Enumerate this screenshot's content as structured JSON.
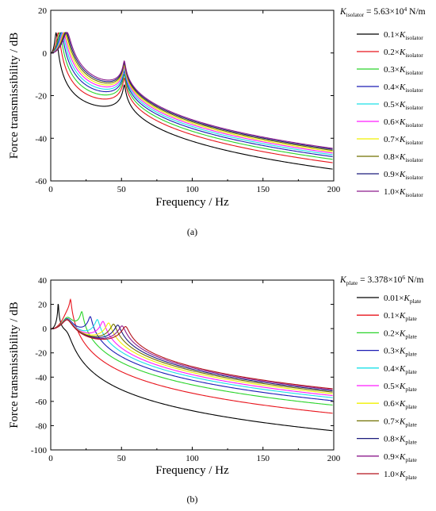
{
  "chart_data": [
    {
      "type": "line",
      "panel_label": "(a)",
      "xlabel": "Frequency / Hz",
      "ylabel": "Force transmissibility / dB",
      "xlim": [
        0,
        200
      ],
      "ylim": [
        -60,
        20
      ],
      "xticks": [
        0,
        50,
        100,
        150,
        200
      ],
      "yticks": [
        -60,
        -40,
        -20,
        0,
        20
      ],
      "grid": false,
      "legend_position": "right",
      "header": {
        "italic": "K",
        "sub": "isolator",
        "tail": " = 5.63×10",
        "sup": "4",
        "unit": " N/m"
      },
      "series": [
        {
          "name": "0.1×K isolator",
          "coef": "0.1×",
          "sym": "K",
          "sub": "isolator",
          "color": "#000000",
          "fi": 3.9
        },
        {
          "name": "0.2×K isolator",
          "coef": "0.2×",
          "sym": "K",
          "sub": "isolator",
          "color": "#e8141c",
          "fi": 5.5
        },
        {
          "name": "0.3×K isolator",
          "coef": "0.3×",
          "sym": "K",
          "sub": "isolator",
          "color": "#2ad42a",
          "fi": 6.6
        },
        {
          "name": "0.4×K isolator",
          "coef": "0.4×",
          "sym": "K",
          "sub": "isolator",
          "color": "#1c1cb4",
          "fi": 7.6
        },
        {
          "name": "0.5×K isolator",
          "coef": "0.5×",
          "sym": "K",
          "sub": "isolator",
          "color": "#1ce0e8",
          "fi": 8.4
        },
        {
          "name": "0.6×K isolator",
          "coef": "0.6×",
          "sym": "K",
          "sub": "isolator",
          "color": "#ff1cff",
          "fi": 9.2
        },
        {
          "name": "0.7×K isolator",
          "coef": "0.7×",
          "sym": "K",
          "sub": "isolator",
          "color": "#f0f000",
          "fi": 9.9
        },
        {
          "name": "0.8×K isolator",
          "coef": "0.8×",
          "sym": "K",
          "sub": "isolator",
          "color": "#707000",
          "fi": 10.6
        },
        {
          "name": "0.9×K isolator",
          "coef": "0.9×",
          "sym": "K",
          "sub": "isolator",
          "color": "#1c1c7c",
          "fi": 11.2
        },
        {
          "name": "1.0×K isolator",
          "coef": "1.0×",
          "sym": "K",
          "sub": "isolator",
          "color": "#8c1c8c",
          "fi": 11.8
        }
      ]
    },
    {
      "type": "line",
      "panel_label": "(b)",
      "xlabel": "Frequency / Hz",
      "ylabel": "Force transmissibility / dB",
      "xlim": [
        0,
        200
      ],
      "ylim": [
        -100,
        40
      ],
      "xticks": [
        0,
        50,
        100,
        150,
        200
      ],
      "yticks": [
        -100,
        -80,
        -60,
        -40,
        -20,
        0,
        20,
        40
      ],
      "grid": false,
      "legend_position": "right",
      "header": {
        "italic": "K",
        "sub": "plate",
        "tail": " = 3.378×10",
        "sup": "6",
        "unit": " N/m"
      },
      "series": [
        {
          "name": "0.01×K plate",
          "coef": "0.01×",
          "sym": "K",
          "sub": "plate",
          "color": "#000000",
          "f2": 5.3,
          "f1": 12
        },
        {
          "name": "0.1×K plate",
          "coef": "0.1×",
          "sym": "K",
          "sub": "plate",
          "color": "#e8141c",
          "f2": 14,
          "f1": 12
        },
        {
          "name": "0.2×K plate",
          "coef": "0.2×",
          "sym": "K",
          "sub": "plate",
          "color": "#2ad42a",
          "f2": 22,
          "f1": 12
        },
        {
          "name": "0.3×K plate",
          "coef": "0.3×",
          "sym": "K",
          "sub": "plate",
          "color": "#1c1cb4",
          "f2": 28,
          "f1": 12
        },
        {
          "name": "0.4×K plate",
          "coef": "0.4×",
          "sym": "K",
          "sub": "plate",
          "color": "#1ce0e8",
          "f2": 33,
          "f1": 12
        },
        {
          "name": "0.5×K plate",
          "coef": "0.5×",
          "sym": "K",
          "sub": "plate",
          "color": "#ff1cff",
          "f2": 37,
          "f1": 12
        },
        {
          "name": "0.6×K plate",
          "coef": "0.6×",
          "sym": "K",
          "sub": "plate",
          "color": "#f0f000",
          "f2": 41,
          "f1": 12
        },
        {
          "name": "0.7×K plate",
          "coef": "0.7×",
          "sym": "K",
          "sub": "plate",
          "color": "#707000",
          "f2": 44.5,
          "f1": 12
        },
        {
          "name": "0.8×K plate",
          "coef": "0.8×",
          "sym": "K",
          "sub": "plate",
          "color": "#1c1c7c",
          "f2": 47.5,
          "f1": 12
        },
        {
          "name": "0.9×K plate",
          "coef": "0.9×",
          "sym": "K",
          "sub": "plate",
          "color": "#8c1c8c",
          "f2": 50.5,
          "f1": 12
        },
        {
          "name": "1.0×K plate",
          "coef": "1.0×",
          "sym": "K",
          "sub": "plate",
          "color": "#b4141c",
          "f2": 53,
          "f1": 12
        }
      ]
    }
  ]
}
